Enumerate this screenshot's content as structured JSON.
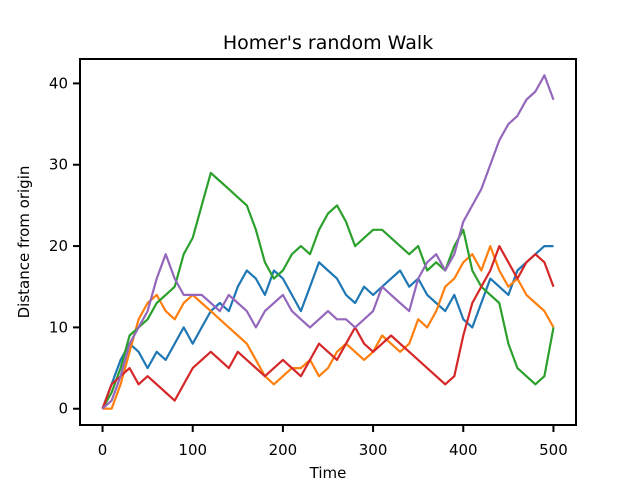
{
  "chart_data": {
    "type": "line",
    "title": "Homer's random Walk",
    "xlabel": "Time",
    "ylabel": "Distance from origin",
    "xlim": [
      -25,
      525
    ],
    "ylim": [
      -2,
      43
    ],
    "xticks": [
      0,
      100,
      200,
      300,
      400,
      500
    ],
    "yticks": [
      0,
      10,
      20,
      30,
      40
    ],
    "grid": false,
    "legend": "none",
    "series": [
      {
        "color": "#1f77b4",
        "x": [
          0,
          10,
          20,
          30,
          40,
          50,
          60,
          70,
          80,
          90,
          100,
          110,
          120,
          130,
          140,
          150,
          160,
          170,
          180,
          190,
          200,
          210,
          220,
          230,
          240,
          250,
          260,
          270,
          280,
          290,
          300,
          310,
          320,
          330,
          340,
          350,
          360,
          370,
          380,
          390,
          400,
          410,
          420,
          430,
          440,
          450,
          460,
          470,
          480,
          490,
          500
        ],
        "y": [
          0,
          3,
          6,
          8,
          7,
          5,
          7,
          6,
          8,
          10,
          8,
          10,
          12,
          13,
          12,
          15,
          17,
          16,
          14,
          17,
          16,
          14,
          12,
          15,
          18,
          17,
          16,
          14,
          13,
          15,
          14,
          15,
          16,
          17,
          15,
          16,
          14,
          13,
          12,
          14,
          11,
          10,
          13,
          16,
          15,
          14,
          17,
          18,
          19,
          20,
          20
        ]
      },
      {
        "color": "#ff7f0e",
        "x": [
          0,
          10,
          20,
          30,
          40,
          50,
          60,
          70,
          80,
          90,
          100,
          110,
          120,
          130,
          140,
          150,
          160,
          170,
          180,
          190,
          200,
          210,
          220,
          230,
          240,
          250,
          260,
          270,
          280,
          290,
          300,
          310,
          320,
          330,
          340,
          350,
          360,
          370,
          380,
          390,
          400,
          410,
          420,
          430,
          440,
          450,
          460,
          470,
          480,
          490,
          500
        ],
        "y": [
          0,
          0,
          3,
          7,
          11,
          13,
          14,
          12,
          11,
          13,
          14,
          13,
          12,
          11,
          10,
          9,
          8,
          6,
          4,
          3,
          4,
          5,
          5,
          6,
          4,
          5,
          7,
          8,
          7,
          6,
          7,
          9,
          8,
          7,
          8,
          11,
          10,
          12,
          15,
          16,
          18,
          19,
          17,
          20,
          17,
          15,
          16,
          14,
          13,
          12,
          10
        ]
      },
      {
        "color": "#2ca02c",
        "x": [
          0,
          10,
          20,
          30,
          40,
          50,
          60,
          70,
          80,
          90,
          100,
          110,
          120,
          130,
          140,
          150,
          160,
          170,
          180,
          190,
          200,
          210,
          220,
          230,
          240,
          250,
          260,
          270,
          280,
          290,
          300,
          310,
          320,
          330,
          340,
          350,
          360,
          370,
          380,
          390,
          400,
          410,
          420,
          430,
          440,
          450,
          460,
          470,
          480,
          490,
          500
        ],
        "y": [
          0,
          2,
          5,
          9,
          10,
          11,
          13,
          14,
          15,
          19,
          21,
          25,
          29,
          28,
          27,
          26,
          25,
          22,
          18,
          16,
          17,
          19,
          20,
          19,
          22,
          24,
          25,
          23,
          20,
          21,
          22,
          22,
          21,
          20,
          19,
          20,
          17,
          18,
          17,
          20,
          22,
          17,
          15,
          14,
          13,
          8,
          5,
          4,
          3,
          4,
          10
        ]
      },
      {
        "color": "#d62728",
        "x": [
          0,
          10,
          20,
          30,
          40,
          50,
          60,
          70,
          80,
          90,
          100,
          110,
          120,
          130,
          140,
          150,
          160,
          170,
          180,
          190,
          200,
          210,
          220,
          230,
          240,
          250,
          260,
          270,
          280,
          290,
          300,
          310,
          320,
          330,
          340,
          350,
          360,
          370,
          380,
          390,
          400,
          410,
          420,
          430,
          440,
          450,
          460,
          470,
          480,
          490,
          500
        ],
        "y": [
          0,
          3,
          4,
          5,
          3,
          4,
          3,
          2,
          1,
          3,
          5,
          6,
          7,
          6,
          5,
          7,
          6,
          5,
          4,
          5,
          6,
          5,
          4,
          6,
          8,
          7,
          6,
          8,
          10,
          8,
          7,
          8,
          9,
          8,
          7,
          6,
          5,
          4,
          3,
          4,
          9,
          13,
          15,
          17,
          20,
          18,
          16,
          18,
          19,
          18,
          15
        ]
      },
      {
        "color": "#9467bd",
        "x": [
          0,
          10,
          20,
          30,
          40,
          50,
          60,
          70,
          80,
          90,
          100,
          110,
          120,
          130,
          140,
          150,
          160,
          170,
          180,
          190,
          200,
          210,
          220,
          230,
          240,
          250,
          260,
          270,
          280,
          290,
          300,
          310,
          320,
          330,
          340,
          350,
          360,
          370,
          380,
          390,
          400,
          410,
          420,
          430,
          440,
          450,
          460,
          470,
          480,
          490,
          500
        ],
        "y": [
          0,
          1,
          4,
          8,
          10,
          12,
          16,
          19,
          16,
          14,
          14,
          14,
          13,
          12,
          14,
          13,
          12,
          10,
          12,
          13,
          14,
          12,
          11,
          10,
          11,
          12,
          11,
          11,
          10,
          11,
          12,
          15,
          14,
          13,
          12,
          16,
          18,
          19,
          17,
          19,
          23,
          25,
          27,
          30,
          33,
          35,
          36,
          38,
          39,
          41,
          38
        ]
      }
    ]
  }
}
